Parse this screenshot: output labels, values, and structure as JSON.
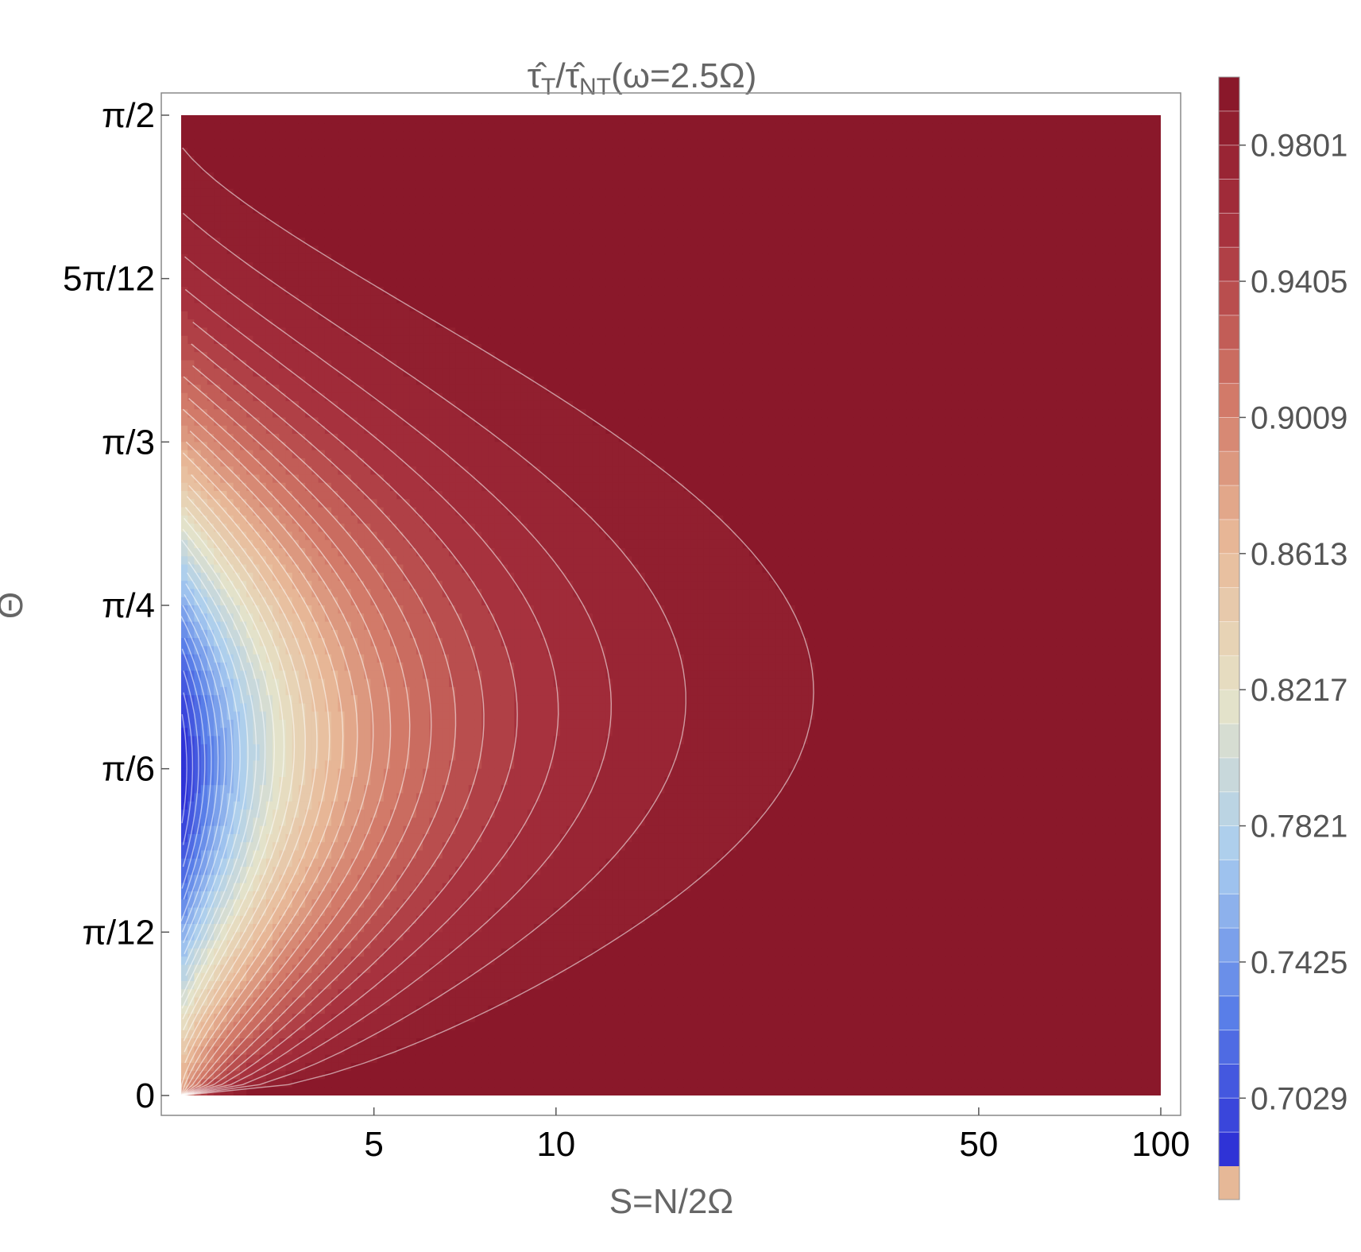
{
  "chart_data": {
    "type": "heatmap",
    "subtype": "contour",
    "title": "τ̂T/τ̂NT(ω=2.5Ω)",
    "title_parts": {
      "num_symbol": "τ̂",
      "num_sub": "T",
      "slash": "/",
      "den_symbol": "τ̂",
      "den_sub": "NT",
      "paren": "(ω=2.5Ω)"
    },
    "xlabel": "S=N/2Ω",
    "ylabel": "Θ",
    "x_scale": "log",
    "xlim": [
      2.4,
      100
    ],
    "ylim": [
      0,
      1.5708
    ],
    "x_ticks": [
      {
        "value": 5,
        "label": "5"
      },
      {
        "value": 10,
        "label": "10"
      },
      {
        "value": 50,
        "label": "50"
      },
      {
        "value": 100,
        "label": "100"
      }
    ],
    "y_ticks": [
      {
        "value": 0,
        "label": "0"
      },
      {
        "value": 0.2618,
        "label": "π/12"
      },
      {
        "value": 0.5236,
        "label": "π/6"
      },
      {
        "value": 0.7854,
        "label": "π/4"
      },
      {
        "value": 1.0472,
        "label": "π/3"
      },
      {
        "value": 1.309,
        "label": "5π/12"
      },
      {
        "value": 1.5708,
        "label": "π/2"
      }
    ],
    "colorbar": {
      "min": 0.6831,
      "max": 0.9999,
      "levels": 32,
      "tick_values": [
        0.7029,
        0.7425,
        0.7821,
        0.8217,
        0.8613,
        0.9009,
        0.9405,
        0.9801
      ],
      "tick_labels": [
        "0.7029",
        "0.7425",
        "0.7821",
        "0.8217",
        "0.8613",
        "0.9009",
        "0.9405",
        "0.9801"
      ],
      "out_of_range_color": "#e6b897"
    },
    "field": {
      "min_value": 0.6831,
      "min_at": {
        "S": 2.4,
        "theta": 0.5236
      },
      "max_value": 1.0,
      "contour_color": "#ffffff"
    },
    "colormap": [
      "#2a2ad4",
      "#5a7fe8",
      "#a9cdef",
      "#e6e3c8",
      "#e8b998",
      "#d07565",
      "#a8323e",
      "#861528"
    ],
    "grid": false,
    "legend": "colorbar-right"
  }
}
